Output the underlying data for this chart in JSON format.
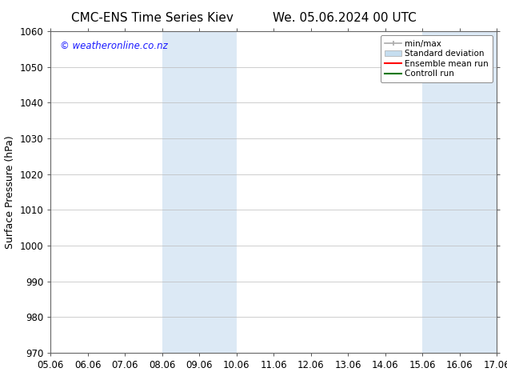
{
  "title_left": "CMC-ENS Time Series Kiev",
  "title_right": "We. 05.06.2024 00 UTC",
  "ylabel": "Surface Pressure (hPa)",
  "ylim": [
    970,
    1060
  ],
  "yticks": [
    970,
    980,
    990,
    1000,
    1010,
    1020,
    1030,
    1040,
    1050,
    1060
  ],
  "xtick_labels": [
    "05.06",
    "06.06",
    "07.06",
    "08.06",
    "09.06",
    "10.06",
    "11.06",
    "12.06",
    "13.06",
    "14.06",
    "15.06",
    "16.06",
    "17.06"
  ],
  "xtick_positions": [
    0,
    1,
    2,
    3,
    4,
    5,
    6,
    7,
    8,
    9,
    10,
    11,
    12
  ],
  "shaded_regions": [
    {
      "xmin": 3,
      "xmax": 5,
      "color": "#dce9f5"
    },
    {
      "xmin": 10,
      "xmax": 12,
      "color": "#dce9f5"
    }
  ],
  "background_color": "#ffffff",
  "grid_color": "#bbbbbb",
  "watermark_text": "© weatheronline.co.nz",
  "watermark_color": "#1a1aff",
  "legend_entries": [
    {
      "label": "min/max",
      "color": "#aaaaaa"
    },
    {
      "label": "Standard deviation",
      "color": "#c5ddef"
    },
    {
      "label": "Ensemble mean run",
      "color": "#ff0000"
    },
    {
      "label": "Controll run",
      "color": "#007700"
    }
  ],
  "title_fontsize": 11,
  "axis_label_fontsize": 9,
  "tick_fontsize": 8.5,
  "legend_fontsize": 7.5
}
